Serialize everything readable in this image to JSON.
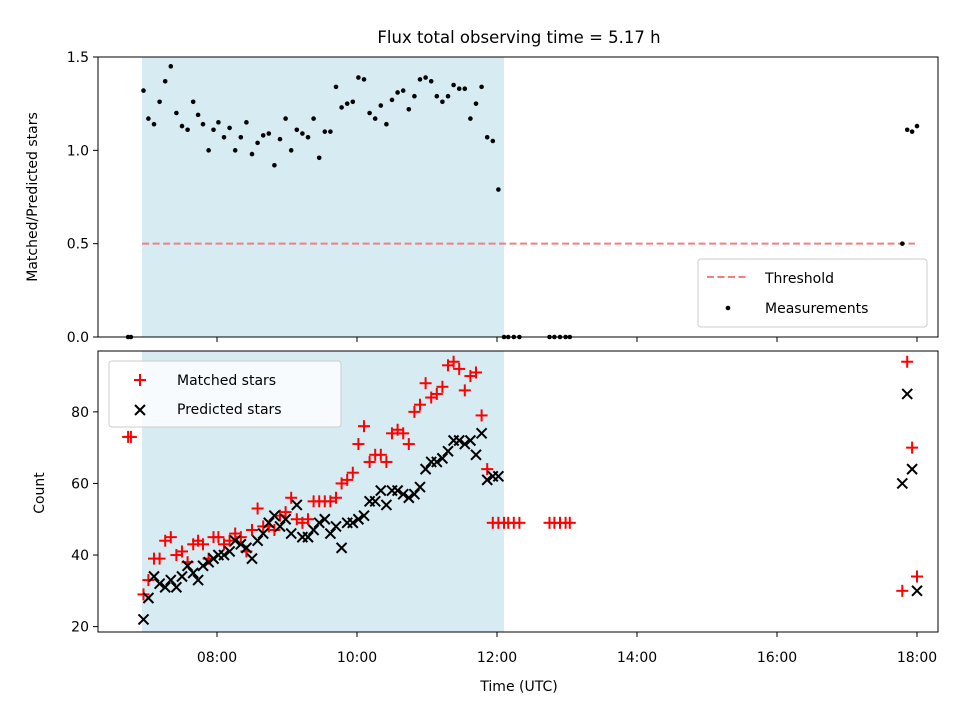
{
  "figure": {
    "title": "Flux total observing time = 5.17 h"
  },
  "chart_data": [
    {
      "panel": "top",
      "type": "scatter",
      "ylabel": "Matched/Predicted stars",
      "ylim": [
        0.0,
        1.5
      ],
      "yticks": [
        "0.0",
        "0.5",
        "1.0",
        "1.5"
      ],
      "x_range_hours": [
        6.3,
        18.3
      ],
      "shaded_span_hours": [
        6.93,
        12.1
      ],
      "shade_color": "#add8e6",
      "threshold": {
        "name": "Threshold",
        "value": 0.5,
        "x_from": 6.93,
        "x_to": 17.97,
        "color": "#f08080"
      },
      "legend": {
        "location": "lower right",
        "entries": [
          "Threshold",
          "Measurements"
        ]
      },
      "series": [
        {
          "name": "Measurements",
          "color": "#000000",
          "x": [
            6.73,
            6.77,
            6.95,
            7.02,
            7.1,
            7.18,
            7.26,
            7.34,
            7.42,
            7.5,
            7.58,
            7.66,
            7.73,
            7.8,
            7.88,
            7.95,
            8.02,
            8.1,
            8.18,
            8.26,
            8.34,
            8.42,
            8.5,
            8.58,
            8.66,
            8.74,
            8.82,
            8.9,
            8.98,
            9.06,
            9.14,
            9.22,
            9.3,
            9.38,
            9.46,
            9.54,
            9.62,
            9.7,
            9.78,
            9.86,
            9.94,
            10.02,
            10.1,
            10.18,
            10.26,
            10.34,
            10.42,
            10.5,
            10.58,
            10.66,
            10.74,
            10.82,
            10.9,
            10.98,
            11.06,
            11.14,
            11.22,
            11.3,
            11.38,
            11.46,
            11.54,
            11.62,
            11.7,
            11.78,
            11.86,
            11.94,
            12.02,
            12.1,
            12.16,
            12.24,
            12.32,
            12.75,
            12.82,
            12.9,
            12.98,
            13.04,
            17.79,
            17.86,
            17.93,
            18.0
          ],
          "y": [
            0.0,
            0.0,
            1.32,
            1.17,
            1.14,
            1.26,
            1.37,
            1.45,
            1.2,
            1.13,
            1.11,
            1.26,
            1.19,
            1.14,
            1.0,
            1.11,
            1.15,
            1.07,
            1.12,
            1.0,
            1.07,
            1.15,
            0.98,
            1.04,
            1.08,
            1.09,
            0.92,
            1.06,
            1.17,
            1.0,
            1.11,
            1.09,
            1.07,
            1.17,
            0.96,
            1.1,
            1.1,
            1.34,
            1.23,
            1.25,
            1.26,
            1.39,
            1.38,
            1.2,
            1.17,
            1.24,
            1.14,
            1.27,
            1.31,
            1.32,
            1.22,
            1.29,
            1.38,
            1.39,
            1.37,
            1.29,
            1.26,
            1.29,
            1.35,
            1.33,
            1.33,
            1.17,
            1.25,
            1.34,
            1.07,
            1.05,
            0.79,
            0.0,
            0.0,
            0.0,
            0.0,
            0.0,
            0.0,
            0.0,
            0.0,
            0.0,
            0.5,
            1.11,
            1.1,
            1.13
          ]
        }
      ]
    },
    {
      "panel": "bottom",
      "type": "scatter",
      "xlabel": "Time (UTC)",
      "ylabel": "Count",
      "ylim": [
        18.5,
        97.0
      ],
      "yticks": [
        "20",
        "40",
        "60",
        "80"
      ],
      "xticks": [
        "08:00",
        "10:00",
        "12:00",
        "14:00",
        "16:00",
        "18:00"
      ],
      "x_range_hours": [
        6.3,
        18.3
      ],
      "shaded_span_hours": [
        6.93,
        12.1
      ],
      "shade_color": "#add8e6",
      "legend": {
        "location": "upper left",
        "entries": [
          "Matched stars",
          "Predicted stars"
        ]
      },
      "series": [
        {
          "name": "Matched stars",
          "marker": "plus",
          "color": "#ff0000",
          "x": [
            6.73,
            6.77,
            6.95,
            7.02,
            7.1,
            7.18,
            7.26,
            7.34,
            7.42,
            7.5,
            7.58,
            7.66,
            7.73,
            7.8,
            7.88,
            7.95,
            8.02,
            8.1,
            8.18,
            8.26,
            8.34,
            8.42,
            8.5,
            8.58,
            8.66,
            8.74,
            8.82,
            8.9,
            8.98,
            9.06,
            9.14,
            9.22,
            9.3,
            9.38,
            9.46,
            9.54,
            9.62,
            9.7,
            9.78,
            9.86,
            9.94,
            10.02,
            10.1,
            10.18,
            10.26,
            10.34,
            10.42,
            10.5,
            10.58,
            10.66,
            10.74,
            10.82,
            10.9,
            10.98,
            11.06,
            11.14,
            11.22,
            11.3,
            11.38,
            11.46,
            11.54,
            11.62,
            11.7,
            11.78,
            11.86,
            11.94,
            12.02,
            12.1,
            12.16,
            12.24,
            12.32,
            12.75,
            12.82,
            12.9,
            12.98,
            13.04,
            17.79,
            17.86,
            17.93,
            18.0
          ],
          "y": [
            73,
            73,
            29,
            33,
            39,
            39,
            44,
            45,
            40,
            41,
            38,
            43,
            44,
            43,
            39,
            45,
            45,
            43,
            44,
            46,
            45,
            41,
            47,
            53,
            48,
            48,
            47,
            51,
            52,
            56,
            50,
            49,
            50,
            55,
            55,
            55,
            55,
            56,
            60,
            61,
            63,
            71,
            76,
            66,
            68,
            68,
            66,
            74,
            75,
            74,
            71,
            80,
            82,
            88,
            84,
            85,
            87,
            93,
            94,
            92,
            86,
            90,
            91,
            79,
            64,
            49,
            49,
            49,
            49,
            49,
            49,
            49,
            49,
            49,
            49,
            49,
            30,
            94,
            70,
            34
          ]
        },
        {
          "name": "Predicted stars",
          "marker": "x",
          "color": "#000000",
          "x": [
            6.95,
            7.02,
            7.1,
            7.18,
            7.26,
            7.34,
            7.42,
            7.5,
            7.58,
            7.66,
            7.73,
            7.8,
            7.88,
            7.95,
            8.02,
            8.1,
            8.18,
            8.26,
            8.34,
            8.42,
            8.5,
            8.58,
            8.66,
            8.74,
            8.82,
            8.9,
            8.98,
            9.06,
            9.14,
            9.22,
            9.3,
            9.38,
            9.46,
            9.54,
            9.62,
            9.7,
            9.78,
            9.86,
            9.94,
            10.02,
            10.1,
            10.18,
            10.26,
            10.34,
            10.42,
            10.5,
            10.58,
            10.66,
            10.74,
            10.82,
            10.9,
            10.98,
            11.06,
            11.14,
            11.22,
            11.3,
            11.38,
            11.46,
            11.54,
            11.62,
            11.7,
            11.78,
            11.86,
            11.94,
            12.02,
            17.79,
            17.86,
            17.93,
            18.0
          ],
          "y": [
            22,
            28,
            34,
            32,
            31,
            33,
            31,
            34,
            37,
            35,
            33,
            37,
            38,
            39,
            40,
            40,
            41,
            44,
            43,
            42,
            39,
            44,
            46,
            49,
            51,
            48,
            50,
            46,
            54,
            45,
            45,
            47,
            49,
            50,
            46,
            48,
            42,
            49,
            49,
            50,
            51,
            55,
            55,
            58,
            54,
            58,
            58,
            57,
            56,
            57,
            59,
            64,
            66,
            66,
            67,
            69,
            72,
            72,
            71,
            72,
            68,
            74,
            61,
            62,
            62,
            60,
            85,
            64,
            30
          ]
        }
      ]
    }
  ]
}
